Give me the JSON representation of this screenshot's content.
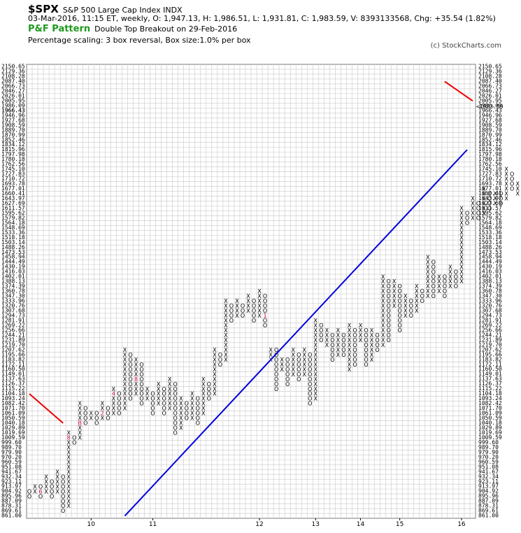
{
  "header": {
    "symbol": "$SPX",
    "name": "S&P 500 Large Cap Index INDX",
    "quote": "03-Mar-2016, 11:15 ET, weekly, O: 1,947.13, H: 1,986.51, L: 1,931.81, C: 1,983.59, V: 8393133568, Chg: +35.54 (1.82%)",
    "pattern_title": "P&F Pattern",
    "pattern_text": "Double Top Breakout on 29-Feb-2016",
    "scaling": "Percentage scaling: 3 box reversal, Box size:1.0% per box",
    "copyright": "(c) StockCharts.com"
  },
  "colors": {
    "background": "#ffffff",
    "grid": "#c8c8c8",
    "x_mark": "#000000",
    "o_mark": "#000000",
    "month_mark": "#c00040",
    "trendline": "#0000dd",
    "resistance": "#ee0000",
    "current_price_marker": "#d03060"
  },
  "chart_data": {
    "type": "point-and-figure",
    "scale": "log",
    "box_size_pct": 1.0,
    "reversal": 3,
    "y_tick_labels": [
      "2150.65",
      "2129.36",
      "2108.28",
      "2087.40",
      "2066.73",
      "2046.27",
      "2026.01",
      "2005.95",
      "1986.09",
      "1966.43",
      "1946.96",
      "1927.68",
      "1908.59",
      "1889.70",
      "1870.99",
      "1852.46",
      "1834.12",
      "1815.96",
      "1797.98",
      "1780.18",
      "1762.56",
      "1745.10",
      "1727.83",
      "1710.72",
      "1693.78",
      "1677.01",
      "1660.41",
      "1643.97",
      "1627.69",
      "1611.57",
      "1595.62",
      "1579.82",
      "1564.18",
      "1548.69",
      "1533.36",
      "1518.18",
      "1503.14",
      "1488.26",
      "1473.53",
      "1458.94",
      "1444.49",
      "1430.19",
      "1416.03",
      "1402.01",
      "1388.13",
      "1374.39",
      "1360.78",
      "1347.30",
      "1333.96",
      "1320.76",
      "1307.68",
      "1294.73",
      "1281.91",
      "1269.22",
      "1256.66",
      "1244.21",
      "1231.89",
      "1219.70",
      "1207.62",
      "1195.66",
      "1183.82",
      "1172.11",
      "1160.50",
      "1149.01",
      "1137.63",
      "1126.37",
      "1115.22",
      "1104.18",
      "1093.24",
      "1082.42",
      "1071.70",
      "1061.09",
      "1050.59",
      "1040.18",
      "1029.89",
      "1019.69",
      "1009.59",
      "999.60",
      "989.70",
      "979.90",
      "970.20",
      "960.59",
      "951.08",
      "941.67",
      "932.34",
      "923.11",
      "913.97",
      "904.92",
      "895.96",
      "887.09",
      "878.31",
      "869.61",
      "861.00"
    ],
    "current_price_label": "<1983.59",
    "left_current_label": "1966.43",
    "x_labels": [
      "10",
      "11",
      "12",
      "13",
      "14",
      "15",
      "16"
    ],
    "columns": [
      {
        "t": "O",
        "hi": 904.92,
        "lo": 895.96
      },
      {
        "t": "X",
        "hi": 913.97,
        "lo": 904.92
      },
      {
        "t": "O",
        "hi": 913.97,
        "lo": 895.96
      },
      {
        "t": "X",
        "hi": 932.34,
        "lo": 904.92
      },
      {
        "t": "O",
        "hi": 923.11,
        "lo": 895.96
      },
      {
        "t": "X",
        "hi": 941.67,
        "lo": 904.92
      },
      {
        "t": "O",
        "hi": 932.34,
        "lo": 869.61
      },
      {
        "t": "X",
        "hi": 1019.69,
        "lo": 878.31
      },
      {
        "t": "O",
        "hi": 1009.59,
        "lo": 999.6
      },
      {
        "t": "X",
        "hi": 1082.42,
        "lo": 1009.59
      },
      {
        "t": "O",
        "hi": 1071.7,
        "lo": 1040.18
      },
      {
        "t": "X",
        "hi": 1061.09,
        "lo": 1050.59
      },
      {
        "t": "O",
        "hi": 1061.09,
        "lo": 1040.18
      },
      {
        "t": "X",
        "hi": 1082.42,
        "lo": 1050.59
      },
      {
        "t": "O",
        "hi": 1071.7,
        "lo": 1050.59
      },
      {
        "t": "X",
        "hi": 1115.22,
        "lo": 1061.09
      },
      {
        "t": "O",
        "hi": 1104.18,
        "lo": 1061.09
      },
      {
        "t": "X",
        "hi": 1207.62,
        "lo": 1071.7
      },
      {
        "t": "O",
        "hi": 1195.66,
        "lo": 1093.24
      },
      {
        "t": "X",
        "hi": 1183.82,
        "lo": 1104.18
      },
      {
        "t": "O",
        "hi": 1172.11,
        "lo": 1082.42
      },
      {
        "t": "X",
        "hi": 1115.22,
        "lo": 1093.24
      },
      {
        "t": "O",
        "hi": 1104.18,
        "lo": 1061.09
      },
      {
        "t": "X",
        "hi": 1126.37,
        "lo": 1082.42
      },
      {
        "t": "O",
        "hi": 1115.22,
        "lo": 1061.09
      },
      {
        "t": "X",
        "hi": 1137.63,
        "lo": 1071.7
      },
      {
        "t": "O",
        "hi": 1126.37,
        "lo": 1019.69
      },
      {
        "t": "X",
        "hi": 1093.24,
        "lo": 1029.89
      },
      {
        "t": "O",
        "hi": 1082.42,
        "lo": 1050.59
      },
      {
        "t": "X",
        "hi": 1104.18,
        "lo": 1050.59
      },
      {
        "t": "O",
        "hi": 1093.24,
        "lo": 1040.18
      },
      {
        "t": "X",
        "hi": 1137.63,
        "lo": 1061.09
      },
      {
        "t": "O",
        "hi": 1126.37,
        "lo": 1093.24
      },
      {
        "t": "X",
        "hi": 1207.62,
        "lo": 1104.18
      },
      {
        "t": "O",
        "hi": 1195.66,
        "lo": 1172.11
      },
      {
        "t": "X",
        "hi": 1333.96,
        "lo": 1183.82
      },
      {
        "t": "O",
        "hi": 1320.76,
        "lo": 1281.91
      },
      {
        "t": "X",
        "hi": 1333.96,
        "lo": 1294.73
      },
      {
        "t": "O",
        "hi": 1320.76,
        "lo": 1294.73
      },
      {
        "t": "X",
        "hi": 1347.3,
        "lo": 1307.68
      },
      {
        "t": "O",
        "hi": 1333.96,
        "lo": 1281.91
      },
      {
        "t": "X",
        "hi": 1360.78,
        "lo": 1294.73
      },
      {
        "t": "O",
        "hi": 1347.3,
        "lo": 1269.22
      },
      {
        "t": "X",
        "hi": 1207.62,
        "lo": 1183.82
      },
      {
        "t": "O",
        "hi": 1207.62,
        "lo": 1115.22
      },
      {
        "t": "X",
        "hi": 1183.82,
        "lo": 1160.5
      },
      {
        "t": "O",
        "hi": 1183.82,
        "lo": 1126.37
      },
      {
        "t": "X",
        "hi": 1207.62,
        "lo": 1149.01
      },
      {
        "t": "O",
        "hi": 1195.66,
        "lo": 1137.63
      },
      {
        "t": "X",
        "hi": 1207.62,
        "lo": 1149.01
      },
      {
        "t": "O",
        "hi": 1195.66,
        "lo": 1082.42
      },
      {
        "t": "X",
        "hi": 1281.91,
        "lo": 1093.24
      },
      {
        "t": "O",
        "hi": 1269.22,
        "lo": 1231.89
      },
      {
        "t": "X",
        "hi": 1256.66,
        "lo": 1219.7
      },
      {
        "t": "O",
        "hi": 1244.21,
        "lo": 1183.82
      },
      {
        "t": "X",
        "hi": 1256.66,
        "lo": 1195.66
      },
      {
        "t": "O",
        "hi": 1244.21,
        "lo": 1195.66
      },
      {
        "t": "X",
        "hi": 1269.22,
        "lo": 1160.5
      },
      {
        "t": "O",
        "hi": 1256.66,
        "lo": 1172.11
      },
      {
        "t": "X",
        "hi": 1269.22,
        "lo": 1231.89
      },
      {
        "t": "O",
        "hi": 1256.66,
        "lo": 1172.11
      },
      {
        "t": "X",
        "hi": 1256.66,
        "lo": 1183.82
      },
      {
        "t": "O",
        "hi": 1244.21,
        "lo": 1207.62
      },
      {
        "t": "X",
        "hi": 1402.01,
        "lo": 1219.7
      },
      {
        "t": "O",
        "hi": 1388.13,
        "lo": 1231.89
      },
      {
        "t": "X",
        "hi": 1388.13,
        "lo": 1320.76
      },
      {
        "t": "O",
        "hi": 1374.39,
        "lo": 1256.66
      },
      {
        "t": "X",
        "hi": 1347.3,
        "lo": 1294.73
      },
      {
        "t": "O",
        "hi": 1333.96,
        "lo": 1294.73
      },
      {
        "t": "X",
        "hi": 1374.39,
        "lo": 1307.68
      },
      {
        "t": "O",
        "hi": 1360.78,
        "lo": 1333.96
      },
      {
        "t": "X",
        "hi": 1458.94,
        "lo": 1347.3
      },
      {
        "t": "O",
        "hi": 1444.49,
        "lo": 1347.3
      },
      {
        "t": "X",
        "hi": 1402.01,
        "lo": 1360.78
      },
      {
        "t": "O",
        "hi": 1402.01,
        "lo": 1347.3
      },
      {
        "t": "X",
        "hi": 1430.19,
        "lo": 1374.39
      },
      {
        "t": "O",
        "hi": 1416.03,
        "lo": 1374.39
      },
      {
        "t": "X",
        "hi": 1611.57,
        "lo": 1388.13
      },
      {
        "t": "O",
        "hi": 1595.62,
        "lo": 1564.18
      },
      {
        "t": "X",
        "hi": 1643.97,
        "lo": 1579.82
      },
      {
        "t": "O",
        "hi": 1627.69,
        "lo": 1579.82
      },
      {
        "t": "X",
        "hi": 1677.01,
        "lo": 1595.62
      },
      {
        "t": "O",
        "hi": 1660.41,
        "lo": 1611.57
      },
      {
        "t": "X",
        "hi": 1660.41,
        "lo": 1627.69
      },
      {
        "t": "O",
        "hi": 1660.41,
        "lo": 1627.69
      },
      {
        "t": "X",
        "hi": 1745.1,
        "lo": 1643.97
      },
      {
        "t": "O",
        "hi": 1727.83,
        "lo": 1677.01
      },
      {
        "t": "X",
        "hi": 1693.78,
        "lo": 1660.41
      },
      {
        "t": "O",
        "hi": 1710.72,
        "lo": 1693.78
      },
      {
        "t": "X",
        "hi": 1797.98,
        "lo": 1710.72
      },
      {
        "t": "O",
        "hi": 1780.18,
        "lo": 1727.83
      },
      {
        "t": "X",
        "hi": 1866.43,
        "lo": 1762.56
      },
      {
        "t": "O",
        "hi": 1870.99,
        "lo": 1815.96
      },
      {
        "t": "X",
        "hi": 1966.43,
        "lo": 1815.96
      },
      {
        "t": "O",
        "hi": 1946.96,
        "lo": 1834.12
      },
      {
        "t": "X",
        "hi": 2005.95,
        "lo": 1852.46
      },
      {
        "t": "O",
        "hi": 1986.09,
        "lo": 1946.96
      },
      {
        "t": "X",
        "hi": 2046.27,
        "lo": 1946.96
      },
      {
        "t": "O",
        "hi": 2026.01,
        "lo": 1986.09
      },
      {
        "t": "X",
        "hi": 2066.73,
        "lo": 2005.95
      },
      {
        "t": "O",
        "hi": 2046.27,
        "lo": 2005.95
      },
      {
        "t": "X",
        "hi": 2087.4,
        "lo": 2026.01
      },
      {
        "t": "O",
        "hi": 2066.73,
        "lo": 2026.01
      },
      {
        "t": "X",
        "hi": 2108.28,
        "lo": 2046.27
      },
      {
        "t": "O",
        "hi": 2087.4,
        "lo": 2046.27
      },
      {
        "t": "X",
        "hi": 2129.36,
        "lo": 2066.73
      },
      {
        "t": "O",
        "hi": 2108.28,
        "lo": 2066.73
      },
      {
        "t": "X",
        "hi": 2108.28,
        "lo": 2066.73
      },
      {
        "t": "O",
        "hi": 2087.4,
        "lo": 2026.01
      },
      {
        "t": "X",
        "hi": 2087.4,
        "lo": 2046.27
      },
      {
        "t": "O",
        "hi": 2066.73,
        "lo": 2046.27
      },
      {
        "t": "O",
        "hi": 2046.27,
        "lo": 1870.99
      },
      {
        "t": "X",
        "hi": 1946.96,
        "lo": 1908.59
      },
      {
        "t": "O",
        "hi": 1927.68,
        "lo": 1889.7
      },
      {
        "t": "X",
        "hi": 1966.43,
        "lo": 1927.68
      },
      {
        "t": "O",
        "hi": 1946.96,
        "lo": 1870.99
      },
      {
        "t": "X",
        "hi": 2087.4,
        "lo": 1889.7
      },
      {
        "t": "O",
        "hi": 2066.73,
        "lo": 2026.01
      },
      {
        "t": "X",
        "hi": 2066.73,
        "lo": 2026.01
      },
      {
        "t": "O",
        "hi": 2046.27,
        "lo": 1815.96
      },
      {
        "t": "X",
        "hi": 1908.59,
        "lo": 1834.12
      },
      {
        "t": "O",
        "hi": 1889.7,
        "lo": 1815.96
      },
      {
        "t": "X",
        "hi": 1986.09,
        "lo": 1834.12
      }
    ],
    "month_marks": [
      {
        "col": 2,
        "v": 904.92,
        "label": "6"
      },
      {
        "col": 7,
        "v": 1009.59,
        "label": "8"
      },
      {
        "col": 8,
        "v": 1029.89,
        "label": "9"
      },
      {
        "col": 9,
        "v": 1040.18,
        "label": "B"
      },
      {
        "col": 13,
        "v": 1061.09,
        "label": "2"
      },
      {
        "col": 15,
        "v": 1104.18,
        "label": "4"
      },
      {
        "col": 16,
        "v": 1183.82,
        "label": "5"
      },
      {
        "col": 17,
        "v": 1061.09,
        "label": "6"
      },
      {
        "col": 18,
        "v": 1029.89,
        "label": "7"
      },
      {
        "col": 19,
        "v": 1137.63,
        "label": "8"
      },
      {
        "col": 21,
        "v": 1126.37,
        "label": "A"
      },
      {
        "col": 23,
        "v": 1231.89,
        "label": "C"
      },
      {
        "col": 25,
        "v": 1333.96,
        "label": "2"
      },
      {
        "col": 27,
        "v": 1333.96,
        "label": "4"
      },
      {
        "col": 29,
        "v": 1360.78,
        "label": "5"
      },
      {
        "col": 30,
        "v": 1360.78,
        "label": "7"
      },
      {
        "col": 31,
        "v": 1294.73,
        "label": "6"
      },
      {
        "col": 32,
        "v": 1294.73,
        "label": "8"
      },
      {
        "col": 34,
        "v": 1207.62,
        "label": "9"
      },
      {
        "col": 41,
        "v": 1207.62,
        "label": "B"
      },
      {
        "col": 42,
        "v": 1294.73,
        "label": "1"
      },
      {
        "col": 43,
        "v": 1281.91,
        "label": "6"
      },
      {
        "col": 44,
        "v": 1402.01,
        "label": "4"
      },
      {
        "col": 45,
        "v": 1388.13,
        "label": "5"
      },
      {
        "col": 47,
        "v": 1388.13,
        "label": "8"
      },
      {
        "col": 48,
        "v": 1430.19,
        "label": "9"
      },
      {
        "col": 49,
        "v": 1458.94,
        "label": "A"
      },
      {
        "col": 51,
        "v": 1488.26,
        "label": "1"
      },
      {
        "col": 52,
        "v": 1579.82,
        "label": "4"
      },
      {
        "col": 53,
        "v": 1643.97,
        "label": "6"
      },
      {
        "col": 54,
        "v": 1660.41,
        "label": "8"
      },
      {
        "col": 55,
        "v": 1627.69,
        "label": "9"
      },
      {
        "col": 56,
        "v": 1660.41,
        "label": "A"
      },
      {
        "col": 57,
        "v": 1797.98,
        "label": "C"
      },
      {
        "col": 58,
        "v": 1870.99,
        "label": "6"
      },
      {
        "col": 59,
        "v": 1946.96,
        "label": "7"
      },
      {
        "col": 60,
        "v": 1986.09,
        "label": "5"
      },
      {
        "col": 61,
        "v": 2066.73,
        "label": "9"
      },
      {
        "col": 62,
        "v": 2046.27,
        "label": "2"
      },
      {
        "col": 63,
        "v": 2046.27,
        "label": "A"
      },
      {
        "col": 64,
        "v": 2066.73,
        "label": "3"
      },
      {
        "col": 65,
        "v": 2129.36,
        "label": "5"
      },
      {
        "col": 66,
        "v": 2129.36,
        "label": "6"
      },
      {
        "col": 67,
        "v": 2046.27,
        "label": "7"
      },
      {
        "col": 68,
        "v": 2046.27,
        "label": "8"
      },
      {
        "col": 71,
        "v": 1946.96,
        "label": "9"
      },
      {
        "col": 72,
        "v": 1889.7,
        "label": "A"
      },
      {
        "col": 74,
        "v": 2108.28,
        "label": "B"
      },
      {
        "col": 75,
        "v": 2046.27,
        "label": "1"
      },
      {
        "col": 76,
        "v": 1946.96,
        "label": "2"
      }
    ],
    "x_label_columns": [
      11,
      22,
      41,
      51,
      59,
      66,
      77
    ],
    "trendlines": [
      {
        "kind": "bullish-support",
        "color": "blue",
        "from": {
          "col": 17,
          "v": 861.0
        },
        "to": {
          "col": 78,
          "v": 1815.96
        }
      },
      {
        "kind": "bearish-resistance",
        "color": "red",
        "from": {
          "col": 0,
          "v": 1104.18
        },
        "to": {
          "col": 6,
          "v": 1040.18
        }
      },
      {
        "kind": "bearish-resistance",
        "color": "red",
        "from": {
          "col": 74,
          "v": 2087.4
        },
        "to": {
          "col": 79,
          "v": 2005.95
        }
      }
    ]
  }
}
